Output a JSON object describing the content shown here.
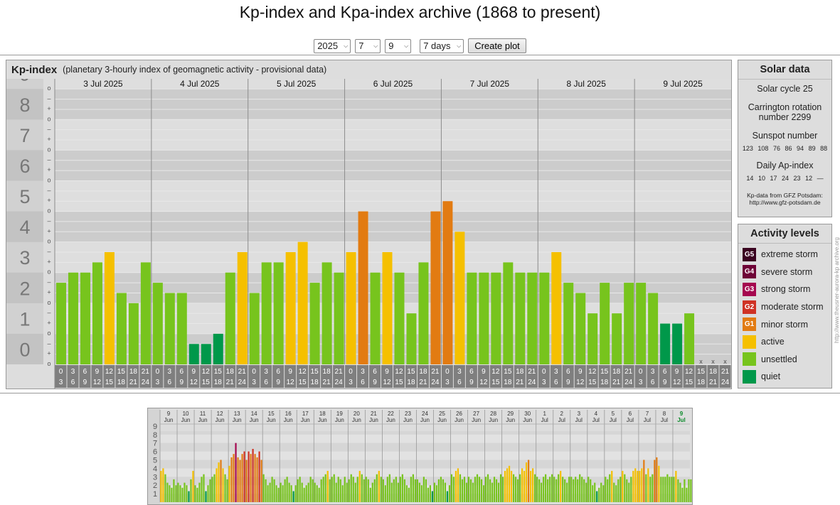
{
  "page": {
    "title": "Kp-index and Kpa-index archive (1868 to present)"
  },
  "controls": {
    "year": "2025",
    "month": "7",
    "day": "9",
    "range": "7 days",
    "create_label": "Create plot"
  },
  "kp_panel": {
    "title": "Kp-index",
    "subtitle": "(planetary 3-hourly index of geomagnetic activity - provisional data)"
  },
  "chart_data": {
    "type": "bar",
    "y_axis_major": [
      "0",
      "1",
      "2",
      "3",
      "4",
      "5",
      "6",
      "7",
      "8",
      "9"
    ],
    "y_axis_minor": [
      "o",
      "+",
      "–"
    ],
    "ylim": [
      0,
      9.33
    ],
    "days": [
      "3 Jul 2025",
      "4 Jul 2025",
      "5 Jul 2025",
      "6 Jul 2025",
      "7 Jul 2025",
      "8 Jul 2025",
      "9 Jul 2025"
    ],
    "interval_start": [
      "0",
      "3",
      "6",
      "9",
      "12",
      "15",
      "18",
      "21"
    ],
    "interval_end": [
      "3",
      "6",
      "9",
      "12",
      "15",
      "18",
      "21",
      "24"
    ],
    "missing_marker": "x",
    "values": [
      2.667,
      3.0,
      3.0,
      3.333,
      3.667,
      2.333,
      2.0,
      3.333,
      2.667,
      2.333,
      2.333,
      0.667,
      0.667,
      1.0,
      3.0,
      3.667,
      2.333,
      3.333,
      3.333,
      3.667,
      4.0,
      2.667,
      3.333,
      3.0,
      3.667,
      5.0,
      3.0,
      3.667,
      3.0,
      1.667,
      3.333,
      5.0,
      5.333,
      4.333,
      3.0,
      3.0,
      3.0,
      3.333,
      3.0,
      3.0,
      3.0,
      3.667,
      2.667,
      2.333,
      1.667,
      2.667,
      1.667,
      2.667,
      2.667,
      2.333,
      1.333,
      1.333,
      1.667,
      null,
      null,
      null
    ],
    "activity_colors": {
      "quiet": "#00984a",
      "unsettled": "#77c41d",
      "active": "#f5c000",
      "G1": "#e27b12",
      "G2": "#cf3224",
      "G3": "#a5074f",
      "G4": "#6e0236",
      "G5": "#3a0120"
    }
  },
  "solar_data": {
    "title": "Solar data",
    "cycle": "Solar cycle 25",
    "carrington": "Carrington rotation number 2299",
    "sunspot_label": "Sunspot number",
    "sunspot_values": [
      "123",
      "108",
      "76",
      "86",
      "94",
      "89",
      "88"
    ],
    "ap_label": "Daily Ap-index",
    "ap_values": [
      "14",
      "10",
      "17",
      "24",
      "23",
      "12",
      "—"
    ],
    "source_line1": "Kp-data from GFZ Potsdam:",
    "source_line2": "http://www.gfz-potsdam.de"
  },
  "activity_levels": {
    "title": "Activity levels",
    "items": [
      {
        "code": "G5",
        "label": "extreme storm",
        "color": "#3a0120"
      },
      {
        "code": "G4",
        "label": "severe storm",
        "color": "#6e0236"
      },
      {
        "code": "G3",
        "label": "strong storm",
        "color": "#a5074f"
      },
      {
        "code": "G2",
        "label": "moderate storm",
        "color": "#cf3224"
      },
      {
        "code": "G1",
        "label": "minor storm",
        "color": "#e27b12"
      },
      {
        "code": "",
        "label": "active",
        "color": "#f5c000"
      },
      {
        "code": "",
        "label": "unsettled",
        "color": "#77c41d"
      },
      {
        "code": "",
        "label": "quiet",
        "color": "#00984a"
      }
    ]
  },
  "side_credit": "http://www.theusner-aurora-kp archive.org",
  "overview": {
    "y_labels": [
      "1",
      "2",
      "3",
      "4",
      "5",
      "6",
      "7",
      "8",
      "9"
    ],
    "days": [
      "9",
      "10",
      "11",
      "12",
      "13",
      "14",
      "15",
      "16",
      "17",
      "18",
      "19",
      "20",
      "21",
      "22",
      "23",
      "24",
      "25",
      "26",
      "27",
      "28",
      "29",
      "30",
      "1",
      "2",
      "3",
      "4",
      "5",
      "6",
      "7",
      "8",
      "9"
    ],
    "months": [
      "Jun",
      "Jun",
      "Jun",
      "Jun",
      "Jun",
      "Jun",
      "Jun",
      "Jun",
      "Jun",
      "Jun",
      "Jun",
      "Jun",
      "Jun",
      "Jun",
      "Jun",
      "Jun",
      "Jun",
      "Jun",
      "Jun",
      "Jun",
      "Jun",
      "Jun",
      "Jul",
      "Jul",
      "Jul",
      "Jul",
      "Jul",
      "Jul",
      "Jul",
      "Jul",
      "Jul"
    ],
    "highlight_color": "#0a8a2a",
    "values": [
      3.7,
      4.0,
      3.3,
      2.3,
      2.0,
      1.7,
      2.7,
      2.0,
      2.3,
      2.0,
      1.7,
      2.3,
      2.0,
      1.3,
      2.7,
      3.7,
      2.0,
      1.7,
      2.3,
      3.0,
      3.3,
      1.3,
      2.0,
      2.7,
      3.0,
      3.3,
      4.0,
      4.7,
      5.0,
      4.0,
      3.3,
      2.7,
      4.3,
      5.3,
      5.7,
      7.0,
      5.3,
      5.0,
      5.7,
      6.0,
      5.0,
      6.0,
      5.7,
      6.3,
      5.7,
      5.3,
      6.0,
      5.0,
      3.3,
      2.7,
      2.0,
      2.3,
      3.0,
      2.7,
      2.0,
      1.7,
      2.3,
      2.0,
      2.7,
      3.0,
      2.3,
      2.0,
      1.3,
      2.0,
      2.7,
      3.0,
      2.3,
      1.7,
      2.0,
      2.3,
      3.0,
      2.7,
      2.3,
      2.0,
      1.7,
      2.7,
      3.0,
      3.3,
      3.7,
      2.7,
      3.0,
      3.3,
      2.3,
      3.0,
      2.7,
      2.0,
      3.0,
      2.3,
      2.7,
      3.3,
      3.0,
      2.3,
      3.0,
      3.7,
      3.3,
      2.7,
      3.0,
      2.7,
      1.7,
      2.3,
      2.7,
      3.3,
      3.7,
      3.0,
      2.7,
      2.0,
      3.0,
      3.3,
      2.3,
      2.7,
      3.0,
      2.3,
      3.0,
      3.3,
      2.7,
      2.0,
      1.7,
      3.0,
      3.3,
      2.7,
      2.7,
      2.3,
      2.0,
      3.0,
      2.7,
      1.7,
      2.0,
      1.3,
      2.3,
      2.0,
      2.7,
      3.0,
      2.7,
      2.3,
      1.3,
      2.0,
      3.3,
      3.0,
      3.7,
      4.0,
      3.3,
      2.7,
      3.0,
      2.3,
      3.0,
      2.7,
      2.3,
      3.0,
      3.3,
      3.0,
      2.7,
      2.0,
      3.0,
      3.3,
      2.7,
      2.3,
      3.0,
      2.7,
      2.3,
      3.3,
      3.0,
      3.7,
      4.0,
      4.3,
      3.7,
      3.3,
      3.0,
      2.7,
      3.3,
      4.0,
      3.7,
      4.7,
      5.0,
      3.7,
      4.0,
      3.3,
      3.0,
      2.7,
      2.3,
      3.0,
      3.3,
      2.7,
      3.0,
      3.3,
      3.0,
      2.7,
      3.3,
      3.7,
      3.0,
      2.7,
      2.3,
      3.0,
      3.0,
      2.7,
      3.0,
      2.7,
      3.3,
      3.0,
      2.7,
      2.3,
      3.0,
      2.7,
      2.0,
      2.3,
      1.3,
      1.7,
      2.3,
      2.0,
      3.0,
      2.7,
      3.3,
      3.7,
      2.3,
      2.0,
      2.7,
      3.0,
      3.7,
      3.3,
      2.7,
      2.3,
      3.0,
      3.7,
      4.0,
      3.7,
      3.7,
      4.0,
      5.0,
      3.3,
      4.0,
      3.0,
      3.3,
      5.0,
      5.3,
      4.3,
      3.0,
      3.0,
      3.0,
      3.3,
      3.0,
      3.0,
      3.0,
      3.7,
      2.7,
      2.3,
      1.7,
      2.7,
      1.7,
      2.7,
      2.7,
      2.3,
      1.3,
      1.3,
      1.7
    ]
  }
}
